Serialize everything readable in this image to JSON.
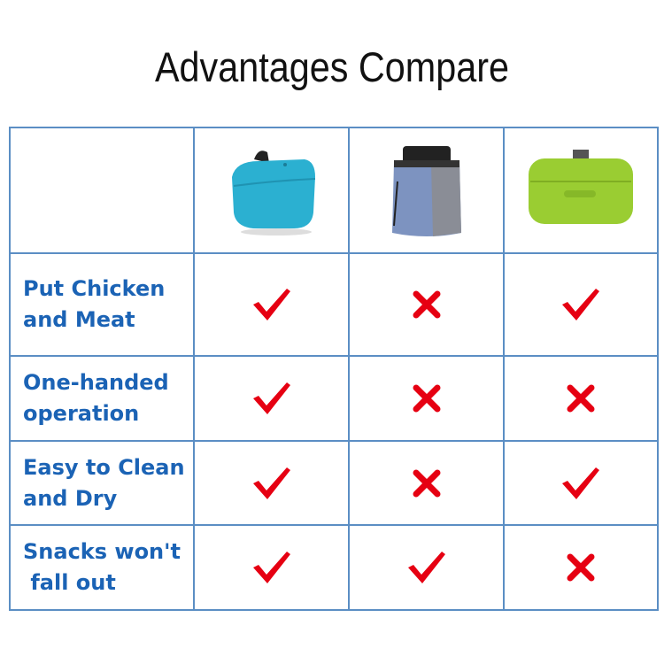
{
  "title": "Advantages Compare",
  "products": [
    {
      "name": "blue-silicone-pouch",
      "color": "#2bb0d1"
    },
    {
      "name": "fabric-treat-bag",
      "color": "#7d93c0"
    },
    {
      "name": "green-silicone-pouch",
      "color": "#9acd32"
    }
  ],
  "colors": {
    "text": "#1b63b5",
    "border": "#5b8ec4",
    "mark": "#e60012"
  },
  "rows": [
    {
      "label_line1": "Put Chicken",
      "label_line2": "and Meat",
      "values": [
        "check",
        "cross",
        "check"
      ]
    },
    {
      "label_line1": "One-handed",
      "label_line2": "operation",
      "values": [
        "check",
        "cross",
        "cross"
      ]
    },
    {
      "label_line1": "Easy to Clean",
      "label_line2": "and Dry",
      "values": [
        "check",
        "cross",
        "check"
      ]
    },
    {
      "label_line1": "Snacks won't",
      "label_line2": " fall out",
      "values": [
        "check",
        "check",
        "cross"
      ]
    }
  ]
}
